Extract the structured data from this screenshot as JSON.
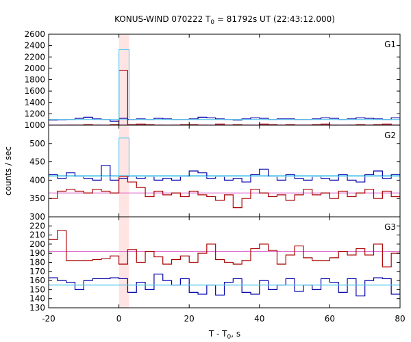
{
  "chart_data": [
    {
      "type": "line",
      "panel": "G1",
      "title": "KONUS-WIND 070222 T",
      "title_sub": "0",
      "title_rest": " = 81792s UT (22:43:12.000)",
      "ylabel": "counts / sec",
      "xlabel_main": "T - T",
      "xlabel_sub": "0",
      "xlabel_rest": ", s",
      "xlim": [
        -20,
        80
      ],
      "ylim": [
        1000,
        2600
      ],
      "x_ticks": [
        -20,
        0,
        20,
        40,
        60,
        80
      ],
      "y_ticks": [
        1000,
        1200,
        1400,
        1600,
        1800,
        2000,
        2200,
        2400,
        2600
      ],
      "y_tick_labels": [
        "1000",
        "1200",
        "1400",
        "1600",
        "1800",
        "2000",
        "2200",
        "2400",
        "2600"
      ],
      "highlight": [
        0,
        2.9
      ],
      "series": [
        {
          "color": "#0000aa",
          "x": [
            -20,
            -17.5,
            -15,
            -12.5,
            -10,
            -7.5,
            -5,
            -2.5,
            0,
            2.5,
            5,
            7.5,
            10,
            12.5,
            15,
            17.5,
            20,
            22.5,
            25,
            27.5,
            30,
            32.5,
            35,
            37.5,
            40,
            42.5,
            45,
            47.5,
            50,
            52.5,
            55,
            57.5,
            60,
            62.5,
            65,
            67.5,
            70,
            72.5,
            75,
            77.5,
            80
          ],
          "values": [
            1090,
            1095,
            1100,
            1120,
            1140,
            1110,
            1100,
            1070,
            1120,
            1100,
            1110,
            1100,
            1120,
            1110,
            1100,
            1100,
            1110,
            1140,
            1130,
            1110,
            1100,
            1090,
            1110,
            1130,
            1120,
            1100,
            1110,
            1110,
            1100,
            1100,
            1110,
            1130,
            1120,
            1100,
            1110,
            1130,
            1120,
            1110,
            1100,
            1130,
            1120
          ]
        },
        {
          "color": "#aa0000",
          "x": [
            -20,
            -17.5,
            -15,
            -12.5,
            -10,
            -7.5,
            -5,
            -2.5,
            0,
            2.5,
            5,
            7.5,
            10,
            12.5,
            15,
            17.5,
            20,
            22.5,
            25,
            27.5,
            30,
            32.5,
            35,
            37.5,
            40,
            42.5,
            45,
            47.5,
            50,
            52.5,
            55,
            57.5,
            60,
            62.5,
            65,
            67.5,
            70,
            72.5,
            75,
            77.5,
            80
          ],
          "values": [
            980,
            990,
            1000,
            1000,
            1010,
            1000,
            990,
            1010,
            1960,
            1010,
            1020,
            1010,
            1000,
            980,
            1000,
            1010,
            1010,
            1000,
            990,
            1020,
            1000,
            1010,
            1000,
            990,
            1020,
            1010,
            1000,
            1010,
            1000,
            1000,
            1010,
            1020,
            1000,
            990,
            1000,
            1010,
            1000,
            1010,
            1020,
            1000,
            1000
          ]
        },
        {
          "color": "#66ccee",
          "x": [
            -20,
            -17.5,
            -15,
            -12.5,
            -10,
            -7.5,
            -5,
            -2.5,
            0,
            2.9,
            5,
            80
          ],
          "values": [
            1100,
            1100,
            1100,
            1100,
            1100,
            1100,
            1100,
            1100,
            2330,
            1100,
            1100,
            1100
          ]
        }
      ],
      "baselines": [
        {
          "color": "#66ccee",
          "value": 1100
        },
        {
          "color": "#dd66cc",
          "value": 1005
        }
      ]
    },
    {
      "type": "line",
      "panel": "G2",
      "xlim": [
        -20,
        80
      ],
      "ylim": [
        300,
        550
      ],
      "y_ticks": [
        300,
        350,
        400,
        450,
        500
      ],
      "y_tick_labels": [
        "300",
        "350",
        "400",
        "450",
        "500"
      ],
      "highlight": [
        0,
        2.9
      ],
      "series": [
        {
          "color": "#0000aa",
          "x": [
            -20,
            -17.5,
            -15,
            -12.5,
            -10,
            -7.5,
            -5,
            -2.5,
            0,
            2.5,
            5,
            7.5,
            10,
            12.5,
            15,
            17.5,
            20,
            22.5,
            25,
            27.5,
            30,
            32.5,
            35,
            37.5,
            40,
            42.5,
            45,
            47.5,
            50,
            52.5,
            55,
            57.5,
            60,
            62.5,
            65,
            67.5,
            70,
            72.5,
            75,
            77.5,
            80
          ],
          "values": [
            415,
            405,
            420,
            410,
            405,
            400,
            440,
            400,
            405,
            410,
            405,
            410,
            400,
            405,
            400,
            410,
            425,
            420,
            405,
            410,
            400,
            405,
            395,
            415,
            430,
            410,
            400,
            415,
            405,
            400,
            410,
            405,
            400,
            415,
            400,
            395,
            415,
            425,
            405,
            415,
            405
          ]
        },
        {
          "color": "#aa0000",
          "x": [
            -20,
            -17.5,
            -15,
            -12.5,
            -10,
            -7.5,
            -5,
            -2.5,
            0,
            2.5,
            5,
            7.5,
            10,
            12.5,
            15,
            17.5,
            20,
            22.5,
            25,
            27.5,
            30,
            32.5,
            35,
            37.5,
            40,
            42.5,
            45,
            47.5,
            50,
            52.5,
            55,
            57.5,
            60,
            62.5,
            65,
            67.5,
            70,
            72.5,
            75,
            77.5,
            80
          ],
          "values": [
            350,
            370,
            375,
            370,
            365,
            375,
            370,
            365,
            410,
            395,
            380,
            355,
            370,
            360,
            365,
            355,
            370,
            360,
            355,
            345,
            360,
            325,
            350,
            375,
            365,
            355,
            360,
            345,
            360,
            375,
            360,
            365,
            350,
            370,
            355,
            365,
            375,
            350,
            370,
            355,
            365
          ]
        },
        {
          "color": "#66ccee",
          "x": [
            -20,
            -17.5,
            -15,
            -12.5,
            -10,
            -7.5,
            -5,
            -2.5,
            0,
            2.9,
            5,
            80
          ],
          "values": [
            410,
            410,
            410,
            410,
            410,
            410,
            410,
            410,
            515,
            410,
            410,
            410
          ]
        }
      ],
      "baselines": [
        {
          "color": "#66ccee",
          "value": 413
        },
        {
          "color": "#dd66cc",
          "value": 365
        }
      ]
    },
    {
      "type": "line",
      "panel": "G3",
      "xlim": [
        -20,
        80
      ],
      "ylim": [
        130,
        230
      ],
      "y_ticks": [
        130,
        140,
        150,
        160,
        170,
        180,
        190,
        200,
        210,
        220
      ],
      "y_tick_labels": [
        "130",
        "140",
        "150",
        "160",
        "170",
        "180",
        "190",
        "200",
        "210",
        "220"
      ],
      "highlight": [
        0,
        2.9
      ],
      "series": [
        {
          "color": "#0000aa",
          "x": [
            -20,
            -17.5,
            -15,
            -12.5,
            -10,
            -7.5,
            -5,
            -2.5,
            0,
            2.5,
            5,
            7.5,
            10,
            12.5,
            15,
            17.5,
            20,
            22.5,
            25,
            27.5,
            30,
            32.5,
            35,
            37.5,
            40,
            42.5,
            45,
            47.5,
            50,
            52.5,
            55,
            57.5,
            60,
            62.5,
            65,
            67.5,
            70,
            72.5,
            75,
            77.5,
            80
          ],
          "values": [
            163,
            160,
            158,
            150,
            160,
            162,
            162,
            163,
            162,
            147,
            158,
            150,
            167,
            160,
            155,
            162,
            147,
            145,
            155,
            144,
            158,
            162,
            147,
            145,
            160,
            150,
            155,
            162,
            148,
            155,
            150,
            162,
            158,
            147,
            162,
            143,
            160,
            163,
            162,
            145,
            150
          ]
        },
        {
          "color": "#aa0000",
          "x": [
            -20,
            -17.5,
            -15,
            -12.5,
            -10,
            -7.5,
            -5,
            -2.5,
            0,
            2.5,
            5,
            7.5,
            10,
            12.5,
            15,
            17.5,
            20,
            22.5,
            25,
            27.5,
            30,
            32.5,
            35,
            37.5,
            40,
            42.5,
            45,
            47.5,
            50,
            52.5,
            55,
            57.5,
            60,
            62.5,
            65,
            67.5,
            70,
            72.5,
            75,
            77.5,
            80
          ],
          "values": [
            205,
            215,
            182,
            182,
            182,
            183,
            184,
            187,
            178,
            194,
            180,
            192,
            186,
            178,
            183,
            187,
            180,
            190,
            200,
            183,
            180,
            178,
            182,
            195,
            200,
            193,
            178,
            188,
            198,
            185,
            182,
            182,
            185,
            192,
            188,
            195,
            188,
            200,
            175,
            190,
            195
          ]
        },
        {
          "color": "#66ccee",
          "x": [
            -20,
            80
          ],
          "values": [
            155,
            155
          ]
        }
      ],
      "baselines": [
        {
          "color": "#66ccee",
          "value": 155
        },
        {
          "color": "#dd66cc",
          "value": 192
        }
      ]
    }
  ],
  "panel_labels": [
    "G1",
    "G2",
    "G3"
  ],
  "x_tick_labels": [
    "-20",
    "0",
    "20",
    "40",
    "60",
    "80"
  ]
}
